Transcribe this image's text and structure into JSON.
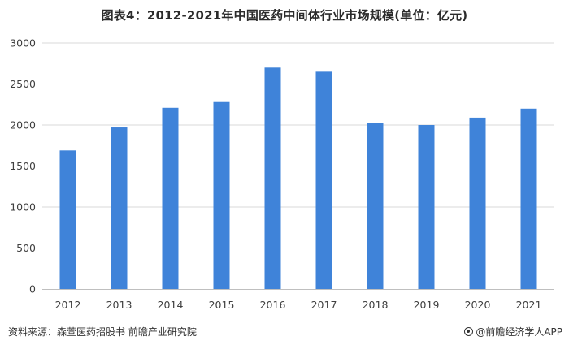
{
  "title": "图表4：2012-2021年中国医药中间体行业市场规模(单位：亿元)",
  "source": "资料来源：森萱医药招股书 前瞻产业研究院",
  "brand": "@前瞻经济学人APP",
  "colors": {
    "bar": "#3f83d9",
    "grid": "#d9d9d9",
    "axis": "#bfbfbf",
    "text": "#404040"
  },
  "chart_data": {
    "type": "bar",
    "title": "图表4：2012-2021年中国医药中间体行业市场规模(单位：亿元)",
    "xlabel": "",
    "ylabel": "",
    "categories": [
      "2012",
      "2013",
      "2014",
      "2015",
      "2016",
      "2017",
      "2018",
      "2019",
      "2020",
      "2021"
    ],
    "values": [
      1690,
      1970,
      2210,
      2280,
      2700,
      2650,
      2020,
      2000,
      2090,
      2200
    ],
    "ylim": [
      0,
      3000
    ],
    "yticks": [
      0,
      500,
      1000,
      1500,
      2000,
      2500,
      3000
    ],
    "grid": true,
    "legend": "none"
  }
}
